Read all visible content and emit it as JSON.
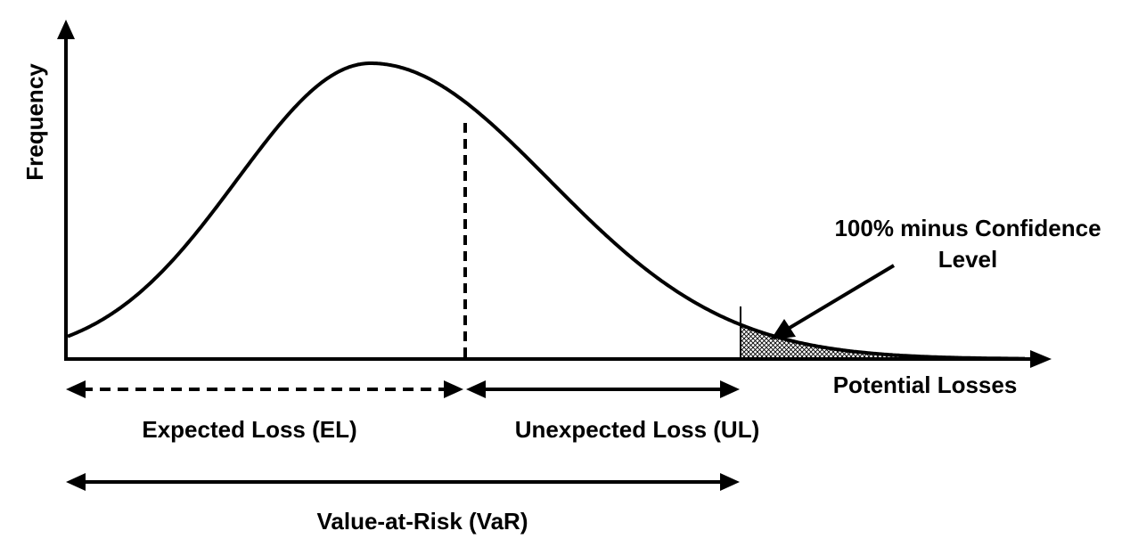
{
  "axes": {
    "y_label": "Frequency",
    "x_label": "Potential Losses"
  },
  "annotation": {
    "line1": "100% minus Confidence",
    "line2": "Level"
  },
  "spans": {
    "expected_loss": "Expected Loss (EL)",
    "unexpected_loss": "Unexpected Loss (UL)",
    "value_at_risk": "Value-at-Risk (VaR)"
  },
  "colors": {
    "ink": "#000000",
    "background": "#ffffff"
  }
}
